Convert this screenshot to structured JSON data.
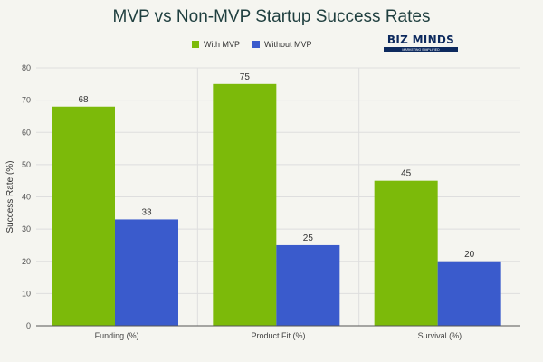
{
  "colors": {
    "with_mvp": "#7cba0a",
    "without_mvp": "#3a5bcc",
    "grid": "#dedede"
  },
  "logo": {
    "text": "BIZ MINDS",
    "tagline": "MARKETING SIMPLIFIED"
  },
  "chart_data": {
    "type": "bar",
    "title": "MVP vs Non-MVP Startup Success Rates",
    "xlabel": "",
    "ylabel": "Success Rate (%)",
    "ylim": [
      0,
      80
    ],
    "yticks": [
      0,
      10,
      20,
      30,
      40,
      50,
      60,
      70,
      80
    ],
    "grid": true,
    "legend_position": "top-center",
    "categories": [
      "Funding (%)",
      "Product Fit (%)",
      "Survival (%)"
    ],
    "series": [
      {
        "name": "With MVP",
        "values": [
          68,
          75,
          45
        ]
      },
      {
        "name": "Without MVP",
        "values": [
          33,
          25,
          20
        ]
      }
    ]
  }
}
